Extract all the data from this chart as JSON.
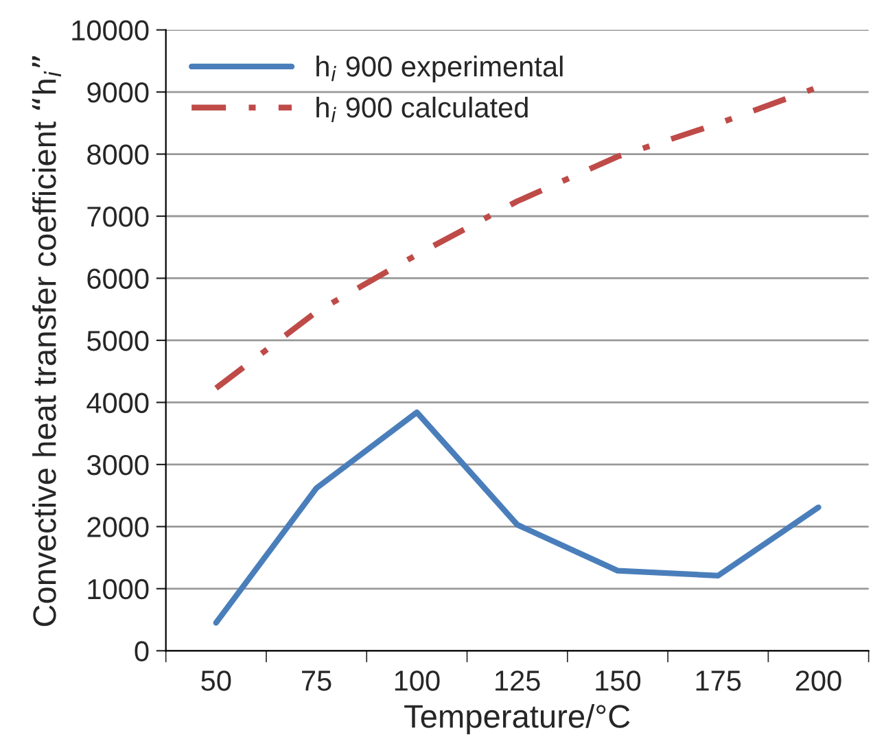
{
  "chart_data": {
    "type": "line",
    "xlabel": "Temperature/°C",
    "ylabel": "Convective heat transfer coefficient “h$_{i}$”",
    "categories": [
      "50",
      "75",
      "100",
      "125",
      "150",
      "175",
      "200"
    ],
    "series": [
      {
        "name": "h$_{i}$ 900 experimental",
        "color": "#4a7ebb",
        "line_style": "solid",
        "values": [
          450,
          2620,
          3840,
          2030,
          1290,
          1210,
          2310
        ]
      },
      {
        "name": "h$_{i}$ 900 calculated",
        "color": "#be4b48",
        "line_style": "dashdot",
        "values": [
          4230,
          5460,
          6380,
          7240,
          7960,
          8490,
          9080
        ]
      }
    ],
    "ylim": [
      0,
      10000
    ],
    "yticks": [
      0,
      1000,
      2000,
      3000,
      4000,
      5000,
      6000,
      7000,
      8000,
      9000,
      10000
    ],
    "grid": "y",
    "legend": "top left",
    "marker": "none"
  }
}
